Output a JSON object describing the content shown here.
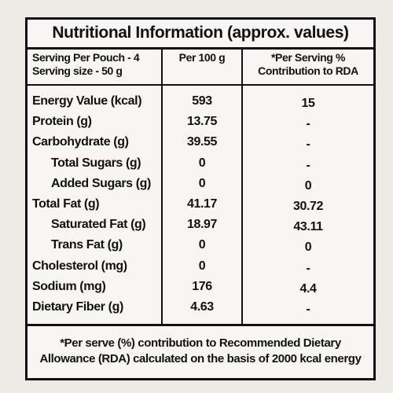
{
  "title": "Nutritional Information (approx. values)",
  "header": {
    "serving": [
      "Serving Per Pouch - 4",
      "Serving size - 50 g"
    ],
    "per100": "Per 100 g",
    "rda": [
      "*Per Serving %",
      "Contribution to RDA"
    ]
  },
  "rows": [
    [
      "Energy Value (kcal)",
      "593",
      "15"
    ],
    [
      "Protein (g)",
      "13.75",
      "-"
    ],
    [
      "Carbohydrate (g)",
      "39.55",
      "-"
    ],
    [
      "Total Sugars (g)",
      "0",
      "-"
    ],
    [
      "Added Sugars (g)",
      "0",
      "0"
    ],
    [
      "Total Fat (g)",
      "41.17",
      "30.72"
    ],
    [
      "Saturated Fat (g)",
      "18.97",
      "43.11"
    ],
    [
      "Trans Fat (g)",
      "0",
      "0"
    ],
    [
      "Cholesterol (mg)",
      "0",
      "-"
    ],
    [
      "Sodium (mg)",
      "176",
      "4.4"
    ],
    [
      "Dietary Fiber (g)",
      "4.63",
      "-"
    ]
  ],
  "footer": [
    "*Per serve (%) contribution to Recommended Dietary",
    "Allowance (RDA) calculated on the basis of 2000 kcal energy"
  ]
}
